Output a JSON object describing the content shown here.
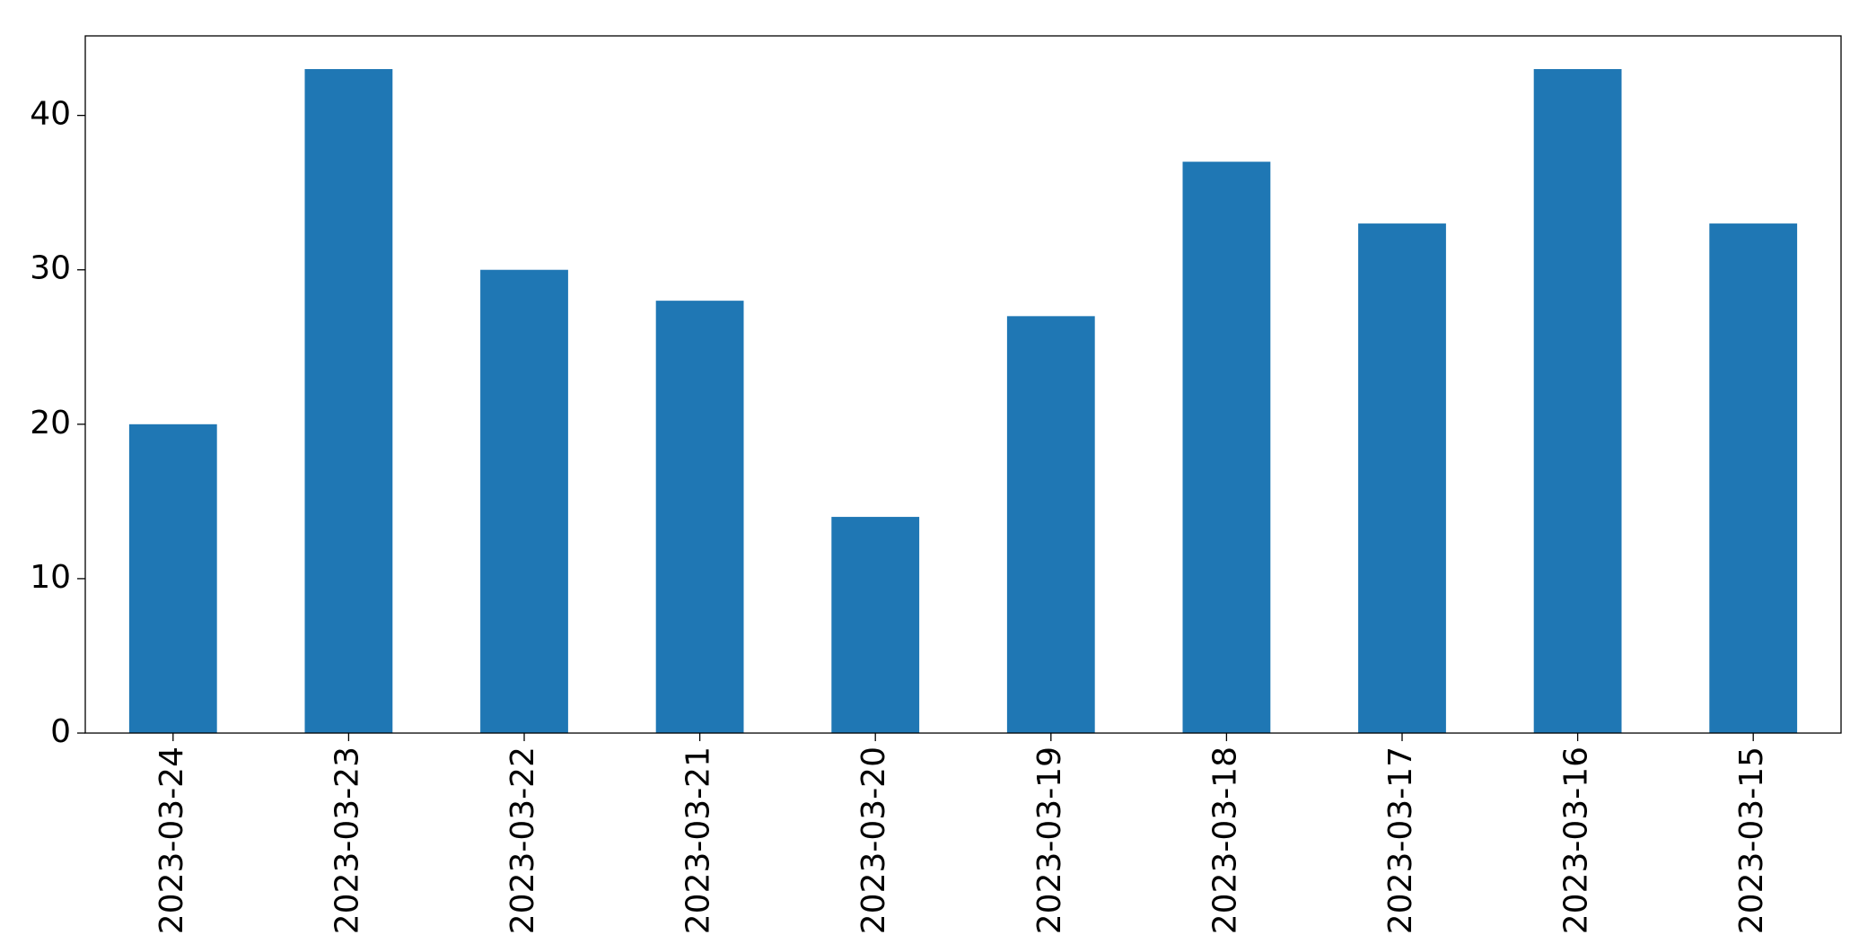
{
  "chart_data": {
    "type": "bar",
    "categories": [
      "2023-03-24",
      "2023-03-23",
      "2023-03-22",
      "2023-03-21",
      "2023-03-20",
      "2023-03-19",
      "2023-03-18",
      "2023-03-17",
      "2023-03-16",
      "2023-03-15"
    ],
    "values": [
      20,
      43,
      30,
      28,
      14,
      27,
      37,
      33,
      43,
      33
    ],
    "color": "#1f77b4",
    "ylim": [
      0,
      45.15
    ],
    "yticks": [
      0,
      10,
      20,
      30,
      40
    ],
    "grid": false
  }
}
